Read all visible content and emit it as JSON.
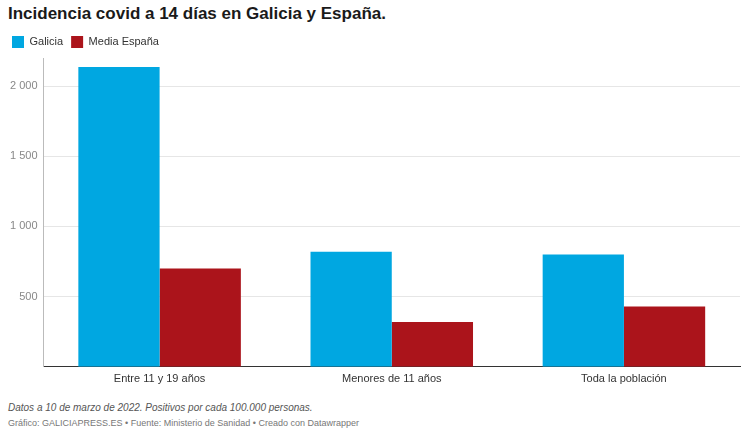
{
  "chart_data": {
    "type": "bar",
    "title": "Incidencia covid a 14 días en Galicia y España.",
    "caption": "Datos a 10 de marzo de 2022. Positivos por cada 100.000 personas.",
    "source": "Gráfico: GALICIAPRESS.ES • Fuente: Ministerio de Sanidad • Creado con Datawrapper",
    "categories": [
      "Entre 11 y 19 años",
      "Menores de 11 años",
      "Toda la población"
    ],
    "series": [
      {
        "name": "Galicia",
        "color": "#00a7e1",
        "values": [
          2135,
          820,
          800
        ]
      },
      {
        "name": "Media España",
        "color": "#ab141b",
        "values": [
          700,
          320,
          430
        ]
      }
    ],
    "ylim": [
      0,
      2200
    ],
    "yticks": [
      500,
      {
        "value": 1000,
        "label": "1 000"
      },
      {
        "value": 1500,
        "label": "1 500"
      },
      {
        "value": 2000,
        "label": "2 000"
      }
    ],
    "grid": true,
    "legend": "top-left"
  }
}
